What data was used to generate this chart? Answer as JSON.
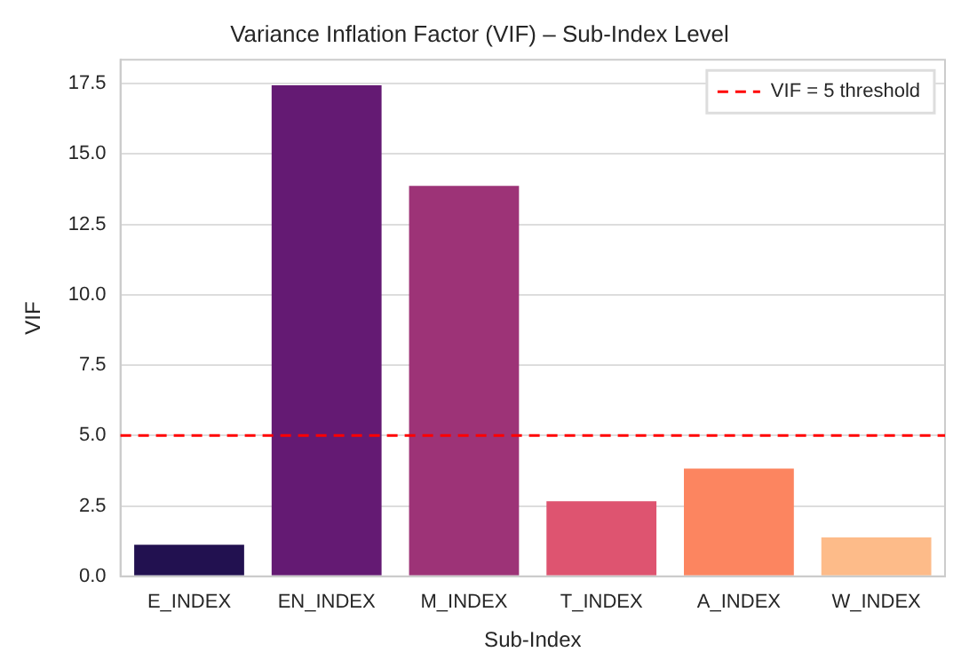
{
  "chart_data": {
    "type": "bar",
    "title": "Variance Inflation Factor (VIF) – Sub-Index Level",
    "xlabel": "Sub-Index",
    "ylabel": "VIF",
    "categories": [
      "E_INDEX",
      "EN_INDEX",
      "M_INDEX",
      "T_INDEX",
      "A_INDEX",
      "W_INDEX"
    ],
    "values": [
      1.12,
      17.44,
      13.87,
      2.67,
      3.83,
      1.38
    ],
    "colors": [
      "#221150",
      "#641a73",
      "#9d3377",
      "#de5470",
      "#fc8560",
      "#fdbb89"
    ],
    "ylim": [
      0,
      18.35
    ],
    "yticks": [
      {
        "value": 0,
        "label": "0.0"
      },
      {
        "value": 2.5,
        "label": "2.5"
      },
      {
        "value": 5,
        "label": "5.0"
      },
      {
        "value": 7.5,
        "label": "7.5"
      },
      {
        "value": 10,
        "label": "10.0"
      },
      {
        "value": 12.5,
        "label": "12.5"
      },
      {
        "value": 15,
        "label": "15.0"
      },
      {
        "value": 17.5,
        "label": "17.5"
      }
    ],
    "grid": "y",
    "legend": "top right",
    "ref_lines": [
      {
        "axis": "y",
        "value": 5,
        "label": "VIF = 5 threshold",
        "color": "#ff0000",
        "line_style": "dashed"
      }
    ]
  }
}
